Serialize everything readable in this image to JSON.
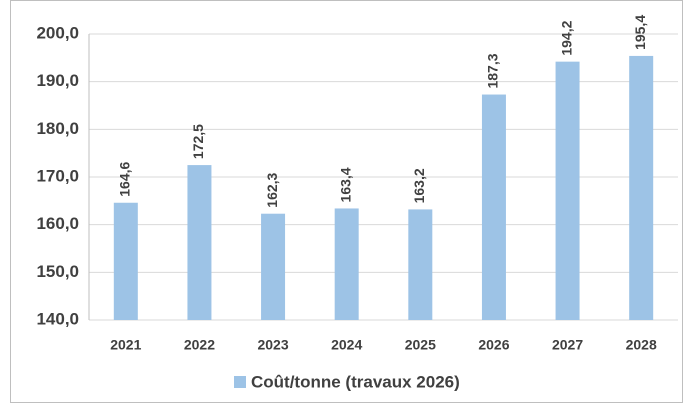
{
  "chart_data": {
    "type": "bar",
    "categories": [
      "2021",
      "2022",
      "2023",
      "2024",
      "2025",
      "2026",
      "2027",
      "2028"
    ],
    "series": [
      {
        "name": "Coût/tonne (travaux 2026)",
        "color": "#9dc3e6",
        "values": [
          164.6,
          172.5,
          162.3,
          163.4,
          163.2,
          187.3,
          194.2,
          195.4
        ],
        "value_labels": [
          "164,6",
          "172,5",
          "162,3",
          "163,4",
          "163,2",
          "187,3",
          "194,2",
          "195,4"
        ]
      }
    ],
    "ylim": [
      140,
      200
    ],
    "yticks": [
      {
        "value": 140,
        "label": "140,0"
      },
      {
        "value": 150,
        "label": "150,0"
      },
      {
        "value": 160,
        "label": "160,0"
      },
      {
        "value": 170,
        "label": "170,0"
      },
      {
        "value": 180,
        "label": "180,0"
      },
      {
        "value": 190,
        "label": "190,0"
      },
      {
        "value": 200,
        "label": "200,0"
      }
    ],
    "grid": true,
    "legend": "bottom"
  }
}
